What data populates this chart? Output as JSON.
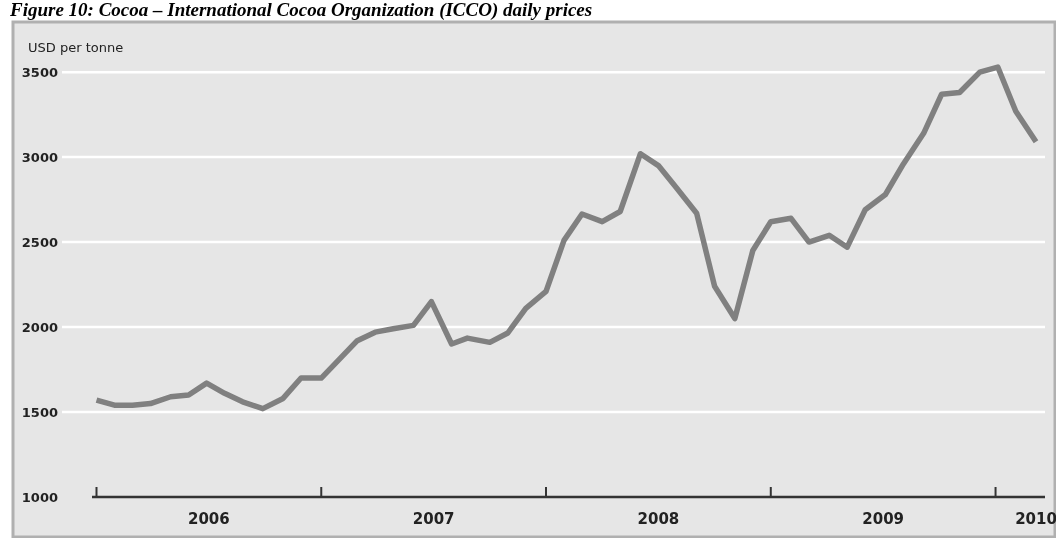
{
  "chart_data": {
    "type": "line",
    "title": "Figure 10: Cocoa – International Cocoa Organization (ICCO) daily prices",
    "ylabel": "USD per tonne",
    "x": [
      2006.0,
      2006.08,
      2006.16,
      2006.24,
      2006.33,
      2006.41,
      2006.49,
      2006.57,
      2006.65,
      2006.74,
      2006.83,
      2006.91,
      2007.0,
      2007.08,
      2007.16,
      2007.24,
      2007.32,
      2007.41,
      2007.49,
      2007.58,
      2007.65,
      2007.75,
      2007.83,
      2007.91,
      2008.0,
      2008.08,
      2008.16,
      2008.25,
      2008.33,
      2008.42,
      2008.5,
      2008.58,
      2008.67,
      2008.75,
      2008.84,
      2008.92,
      2009.0,
      2009.09,
      2009.17,
      2009.26,
      2009.34,
      2009.42,
      2009.51,
      2009.59,
      2009.68,
      2009.76,
      2009.84,
      2009.93,
      2010.01,
      2010.09,
      2010.18
    ],
    "series": [
      {
        "color": "#808080",
        "values": [
          1570,
          1540,
          1540,
          1550,
          1590,
          1600,
          1670,
          1610,
          1560,
          1520,
          1580,
          1700,
          1700,
          1810,
          1920,
          1970,
          1990,
          2010,
          2150,
          1900,
          1935,
          1910,
          1965,
          2110,
          2210,
          2510,
          2665,
          2620,
          2680,
          3020,
          2950,
          2820,
          2670,
          2240,
          2050,
          2450,
          2620,
          2640,
          2500,
          2540,
          2470,
          2690,
          2780,
          2960,
          3140,
          3370,
          3380,
          3500,
          3530,
          3270,
          3090
        ]
      }
    ],
    "xlim": [
      2005.98,
      2010.22
    ],
    "xticks": [
      {
        "value": 2006,
        "label": null
      },
      {
        "value": 2006.5,
        "label": "2006"
      },
      {
        "value": 2007,
        "label": null
      },
      {
        "value": 2007.5,
        "label": "2007"
      },
      {
        "value": 2008,
        "label": null
      },
      {
        "value": 2008.5,
        "label": "2008"
      },
      {
        "value": 2009,
        "label": null
      },
      {
        "value": 2009.5,
        "label": "2009"
      },
      {
        "value": 2010,
        "label": null
      },
      {
        "value": 2010.18,
        "label": "2010"
      }
    ],
    "ylim": [
      1000,
      3795
    ],
    "yticks": [
      1000,
      1500,
      2000,
      2500,
      3000,
      3500
    ],
    "grid": "y"
  }
}
